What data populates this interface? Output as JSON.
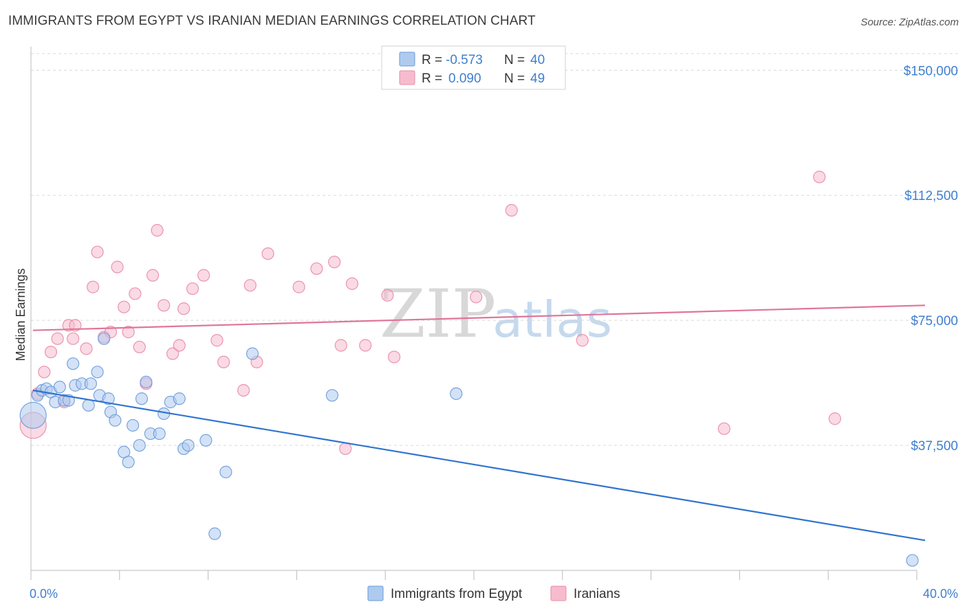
{
  "title": "IMMIGRANTS FROM EGYPT VS IRANIAN MEDIAN EARNINGS CORRELATION CHART",
  "source": "Source: ZipAtlas.com",
  "watermark": {
    "part1": "ZIP",
    "part2": "atlas"
  },
  "colors": {
    "egypt_fill": "#aecbee",
    "egypt_stroke": "#6a9ad8",
    "egypt_line": "#2f73cf",
    "iran_fill": "#f6bccd",
    "iran_stroke": "#e98aa6",
    "iran_line": "#e0759a",
    "tick": "#3f7fce",
    "grid": "#d9d9d9"
  },
  "legend": {
    "rows": [
      {
        "r_label": "R = ",
        "r_value": "-0.573",
        "n_label": "N = ",
        "n_value": "40",
        "series": "egypt"
      },
      {
        "r_label": "R = ",
        "r_value": "0.090",
        "n_label": "N = ",
        "n_value": "49",
        "series": "iran"
      }
    ]
  },
  "bottom_legend": [
    "Immigrants from Egypt",
    "Iranians"
  ],
  "chart_data": {
    "type": "scatter",
    "xlabel": "",
    "ylabel": "Median Earnings",
    "xlim": [
      0,
      40
    ],
    "ylim": [
      0,
      155000
    ],
    "x_tick_labels": [
      {
        "value": 0,
        "label": "0.0%"
      },
      {
        "value": 40,
        "label": "40.0%"
      }
    ],
    "y_ticks": [
      {
        "value": 37500,
        "label": "$37,500"
      },
      {
        "value": 75000,
        "label": "$75,000"
      },
      {
        "value": 112500,
        "label": "$112,500"
      },
      {
        "value": 150000,
        "label": "$150,000"
      }
    ],
    "series": [
      {
        "name": "Immigrants from Egypt",
        "key": "egypt",
        "R": -0.573,
        "N": 40,
        "trend": {
          "x": [
            0,
            40
          ],
          "y": [
            54000,
            9000
          ]
        },
        "points": [
          {
            "x": 0.1,
            "y": 46500,
            "size": 3
          },
          {
            "x": 0.3,
            "y": 52500,
            "size": 1
          },
          {
            "x": 0.5,
            "y": 54000,
            "size": 1
          },
          {
            "x": 0.7,
            "y": 54500,
            "size": 1
          },
          {
            "x": 0.9,
            "y": 53500,
            "size": 1
          },
          {
            "x": 1.1,
            "y": 50500,
            "size": 1
          },
          {
            "x": 1.3,
            "y": 55000,
            "size": 1
          },
          {
            "x": 1.5,
            "y": 51000,
            "size": 1
          },
          {
            "x": 1.7,
            "y": 51000,
            "size": 1
          },
          {
            "x": 1.9,
            "y": 62000,
            "size": 1
          },
          {
            "x": 2.0,
            "y": 55500,
            "size": 1
          },
          {
            "x": 2.3,
            "y": 56000,
            "size": 1
          },
          {
            "x": 2.6,
            "y": 49500,
            "size": 1
          },
          {
            "x": 2.7,
            "y": 56000,
            "size": 1
          },
          {
            "x": 3.0,
            "y": 59500,
            "size": 1
          },
          {
            "x": 3.1,
            "y": 52500,
            "size": 1
          },
          {
            "x": 3.3,
            "y": 69500,
            "size": 1
          },
          {
            "x": 3.5,
            "y": 51500,
            "size": 1
          },
          {
            "x": 3.6,
            "y": 47500,
            "size": 1
          },
          {
            "x": 3.8,
            "y": 45000,
            "size": 1
          },
          {
            "x": 4.2,
            "y": 35500,
            "size": 1
          },
          {
            "x": 4.4,
            "y": 32500,
            "size": 1
          },
          {
            "x": 4.6,
            "y": 43500,
            "size": 1
          },
          {
            "x": 4.9,
            "y": 37500,
            "size": 1
          },
          {
            "x": 5.0,
            "y": 51500,
            "size": 1
          },
          {
            "x": 5.2,
            "y": 56500,
            "size": 1
          },
          {
            "x": 5.4,
            "y": 41000,
            "size": 1
          },
          {
            "x": 5.8,
            "y": 41000,
            "size": 1
          },
          {
            "x": 6.0,
            "y": 47000,
            "size": 1
          },
          {
            "x": 6.3,
            "y": 50500,
            "size": 1
          },
          {
            "x": 6.7,
            "y": 51500,
            "size": 1
          },
          {
            "x": 6.9,
            "y": 36500,
            "size": 1
          },
          {
            "x": 7.1,
            "y": 37500,
            "size": 1
          },
          {
            "x": 7.9,
            "y": 39000,
            "size": 1
          },
          {
            "x": 8.3,
            "y": 11000,
            "size": 1
          },
          {
            "x": 8.8,
            "y": 29500,
            "size": 1
          },
          {
            "x": 10.0,
            "y": 65000,
            "size": 1
          },
          {
            "x": 13.6,
            "y": 52500,
            "size": 1
          },
          {
            "x": 19.2,
            "y": 53000,
            "size": 1
          },
          {
            "x": 39.8,
            "y": 3000,
            "size": 1
          }
        ]
      },
      {
        "name": "Iranians",
        "key": "iran",
        "R": 0.09,
        "N": 49,
        "trend": {
          "x": [
            0,
            40
          ],
          "y": [
            72000,
            79500
          ]
        },
        "points": [
          {
            "x": 0.1,
            "y": 43500,
            "size": 3
          },
          {
            "x": 0.3,
            "y": 53000,
            "size": 1
          },
          {
            "x": 0.6,
            "y": 59500,
            "size": 1
          },
          {
            "x": 0.9,
            "y": 65500,
            "size": 1
          },
          {
            "x": 1.2,
            "y": 69500,
            "size": 1
          },
          {
            "x": 1.5,
            "y": 50500,
            "size": 1
          },
          {
            "x": 1.7,
            "y": 73500,
            "size": 1
          },
          {
            "x": 1.9,
            "y": 69500,
            "size": 1
          },
          {
            "x": 2.0,
            "y": 73500,
            "size": 1
          },
          {
            "x": 2.5,
            "y": 66500,
            "size": 1
          },
          {
            "x": 2.8,
            "y": 85000,
            "size": 1
          },
          {
            "x": 3.0,
            "y": 95500,
            "size": 1
          },
          {
            "x": 3.3,
            "y": 70000,
            "size": 1
          },
          {
            "x": 3.6,
            "y": 71500,
            "size": 1
          },
          {
            "x": 3.9,
            "y": 91000,
            "size": 1
          },
          {
            "x": 4.2,
            "y": 79000,
            "size": 1
          },
          {
            "x": 4.4,
            "y": 71500,
            "size": 1
          },
          {
            "x": 4.7,
            "y": 83000,
            "size": 1
          },
          {
            "x": 4.9,
            "y": 67000,
            "size": 1
          },
          {
            "x": 5.2,
            "y": 56000,
            "size": 1
          },
          {
            "x": 5.5,
            "y": 88500,
            "size": 1
          },
          {
            "x": 5.7,
            "y": 102000,
            "size": 1
          },
          {
            "x": 6.0,
            "y": 79500,
            "size": 1
          },
          {
            "x": 6.4,
            "y": 65000,
            "size": 1
          },
          {
            "x": 6.7,
            "y": 67500,
            "size": 1
          },
          {
            "x": 6.9,
            "y": 78500,
            "size": 1
          },
          {
            "x": 7.3,
            "y": 84500,
            "size": 1
          },
          {
            "x": 7.8,
            "y": 88500,
            "size": 1
          },
          {
            "x": 8.4,
            "y": 69000,
            "size": 1
          },
          {
            "x": 8.7,
            "y": 62500,
            "size": 1
          },
          {
            "x": 9.6,
            "y": 54000,
            "size": 1
          },
          {
            "x": 9.9,
            "y": 85500,
            "size": 1
          },
          {
            "x": 10.2,
            "y": 62500,
            "size": 1
          },
          {
            "x": 10.7,
            "y": 95000,
            "size": 1
          },
          {
            "x": 12.1,
            "y": 85000,
            "size": 1
          },
          {
            "x": 12.9,
            "y": 90500,
            "size": 1
          },
          {
            "x": 13.7,
            "y": 92500,
            "size": 1
          },
          {
            "x": 14.0,
            "y": 67500,
            "size": 1
          },
          {
            "x": 14.2,
            "y": 36500,
            "size": 1
          },
          {
            "x": 14.5,
            "y": 86000,
            "size": 1
          },
          {
            "x": 15.1,
            "y": 67500,
            "size": 1
          },
          {
            "x": 16.1,
            "y": 82500,
            "size": 1
          },
          {
            "x": 16.4,
            "y": 64000,
            "size": 1
          },
          {
            "x": 20.1,
            "y": 82000,
            "size": 1
          },
          {
            "x": 21.7,
            "y": 108000,
            "size": 1
          },
          {
            "x": 24.9,
            "y": 69000,
            "size": 1
          },
          {
            "x": 31.3,
            "y": 42500,
            "size": 1
          },
          {
            "x": 35.6,
            "y": 118000,
            "size": 1
          },
          {
            "x": 36.3,
            "y": 45500,
            "size": 1
          }
        ]
      }
    ]
  }
}
